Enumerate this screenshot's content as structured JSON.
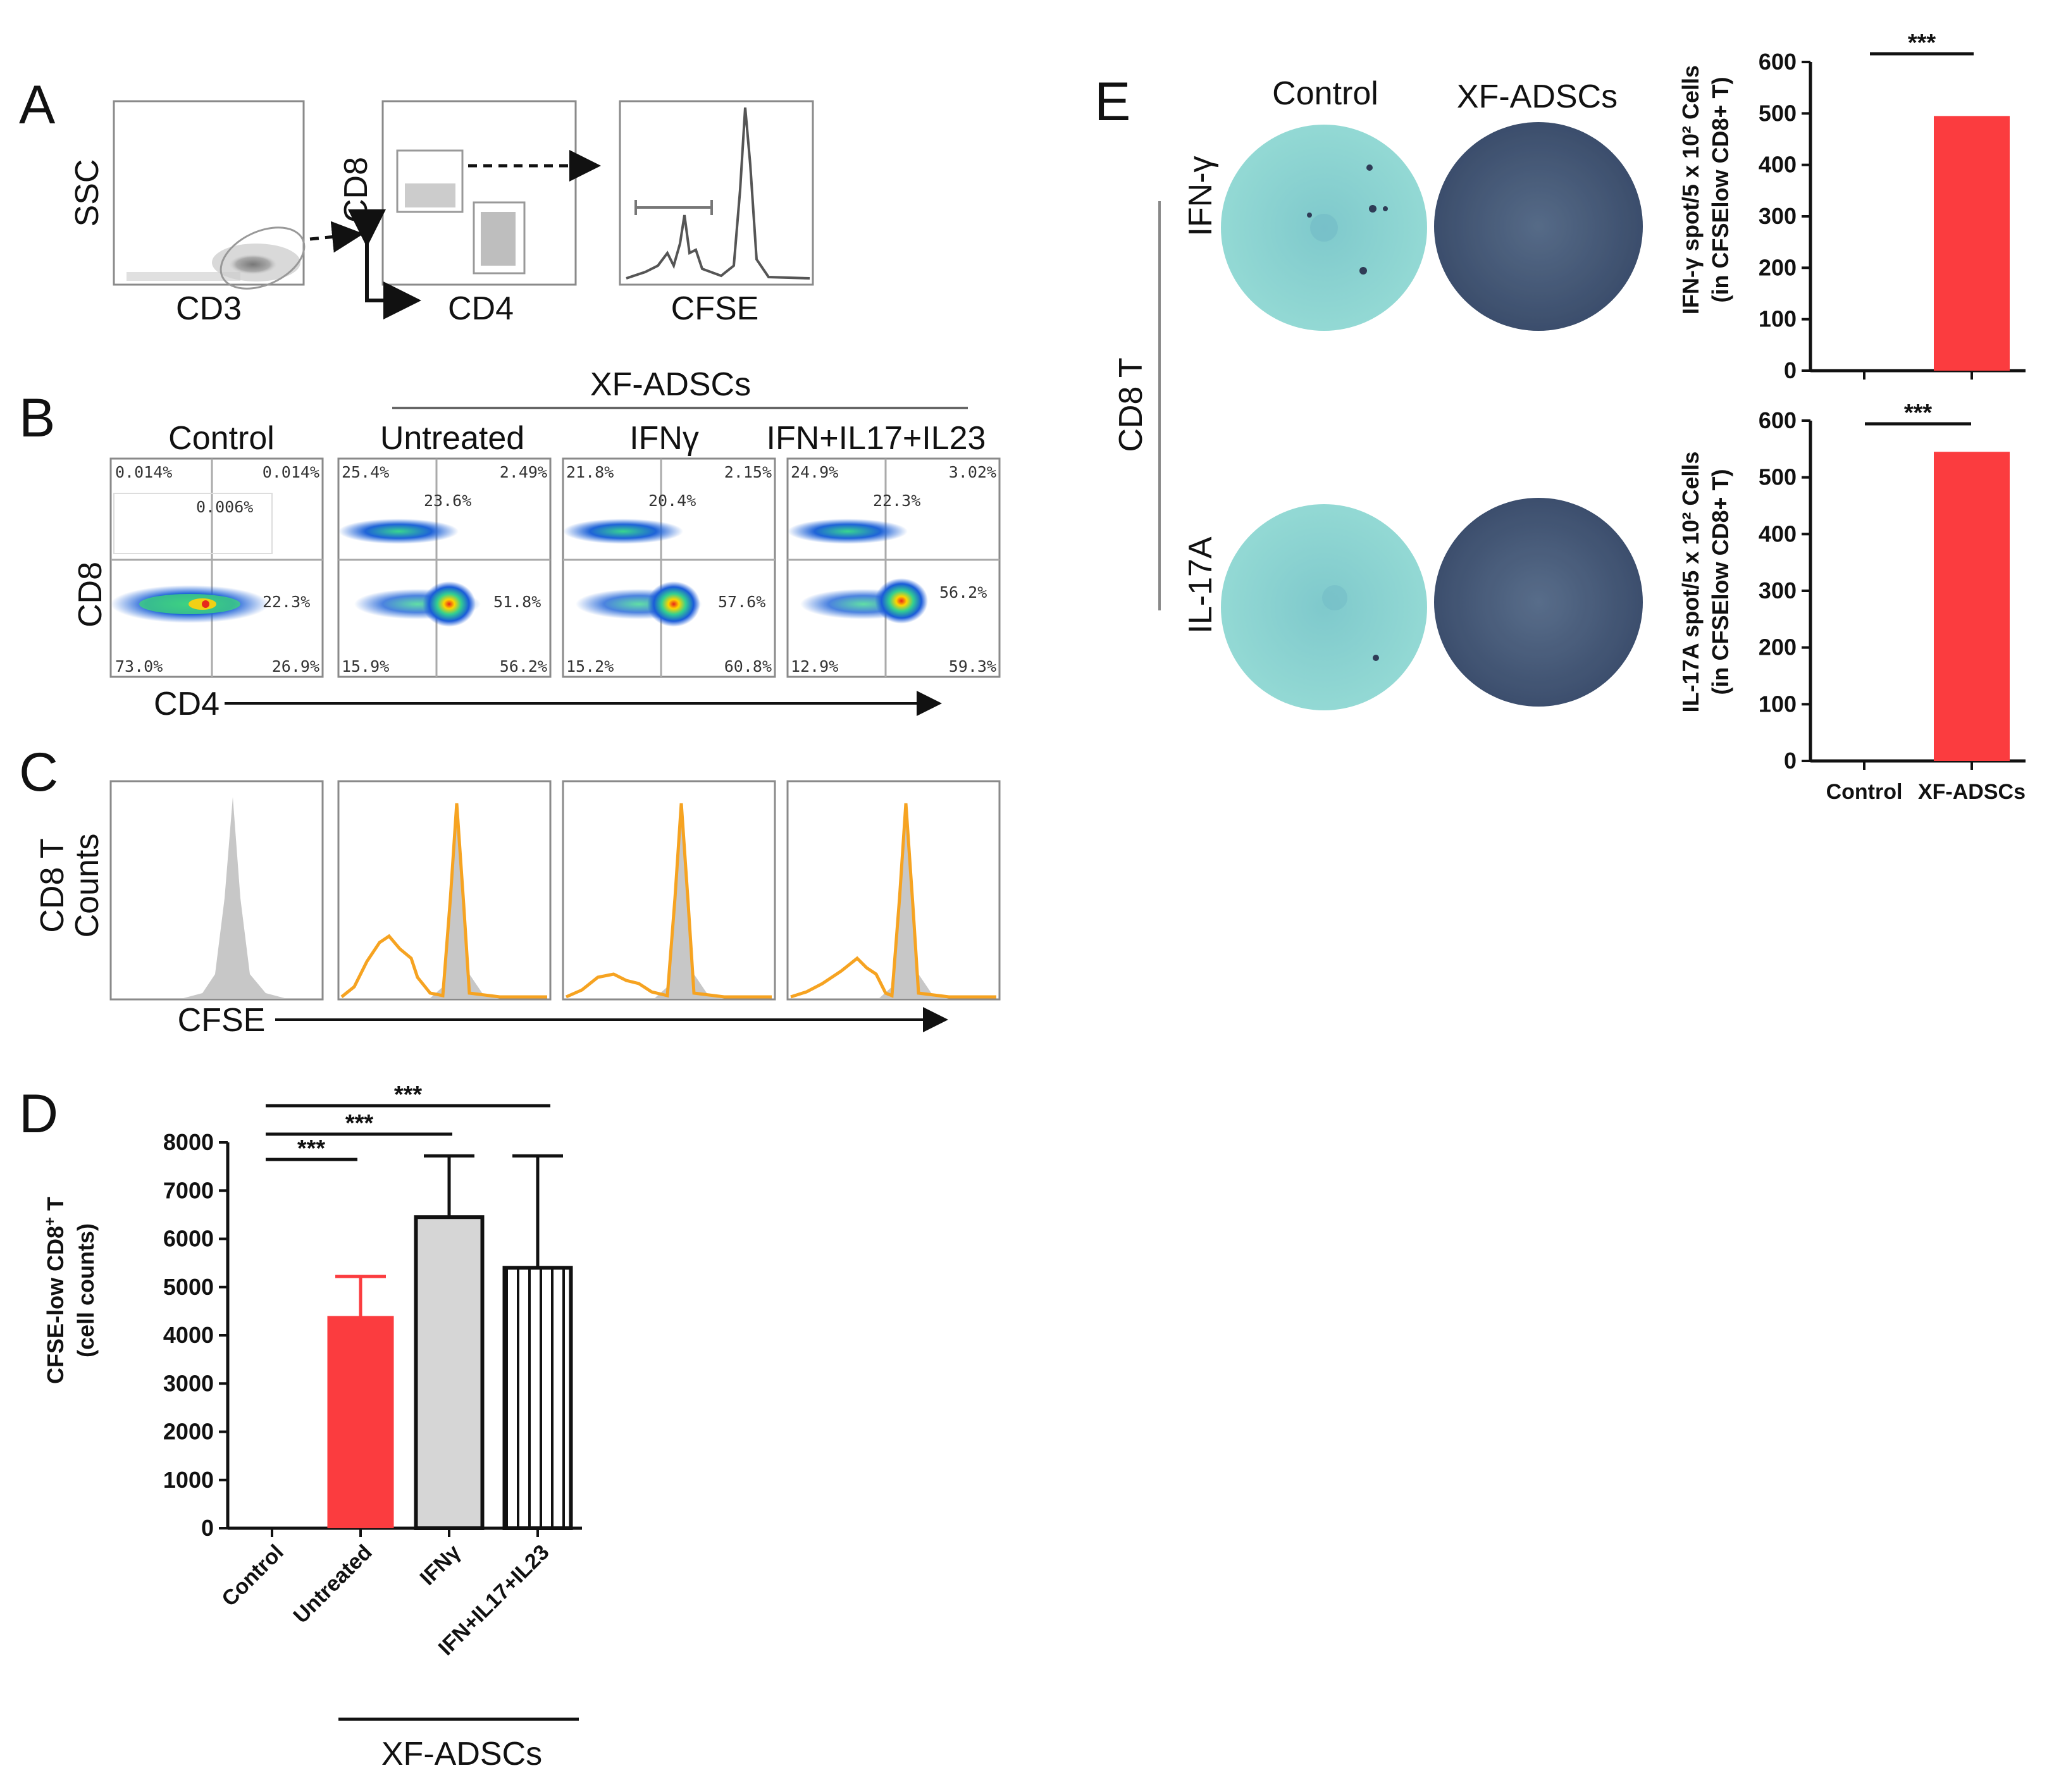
{
  "colors": {
    "red": "#fb3c3f",
    "grey_bar": "#d6d6d6",
    "orange": "#f6a321",
    "dish_bg": "#8fd3d0",
    "spot": "#2f3c56"
  },
  "panel_A": {
    "label": "A",
    "plot1": {
      "y_label": "SSC",
      "x_label": "CD3"
    },
    "plot2": {
      "y_label": "CD8",
      "x_label": "CD4"
    },
    "plot3": {
      "x_label": "CFSE"
    }
  },
  "panel_B": {
    "label": "B",
    "group_label": "XF-ADSCs",
    "y_axis": "CD8",
    "x_axis": "CD4",
    "plots": [
      {
        "title": "Control",
        "ul": "0.014%",
        "ur": "0.014%",
        "mid": "0.006%",
        "right": "22.3%",
        "ll": "73.0%",
        "lr": "26.9%"
      },
      {
        "title": "Untreated",
        "ul": "25.4%",
        "ur": "2.49%",
        "mid": "23.6%",
        "right": "51.8%",
        "ll": "15.9%",
        "lr": "56.2%"
      },
      {
        "title": "IFNγ",
        "ul": "21.8%",
        "ur": "2.15%",
        "mid": "20.4%",
        "right": "57.6%",
        "ll": "15.2%",
        "lr": "60.8%"
      },
      {
        "title": "IFN+IL17+IL23",
        "ul": "24.9%",
        "ur": "3.02%",
        "mid": "22.3%",
        "right": "56.2%",
        "ll": "12.9%",
        "lr": "59.3%"
      }
    ]
  },
  "panel_C": {
    "label": "C",
    "y_label_line1": "CD8 T",
    "y_label_line2": "Counts",
    "x_axis": "CFSE"
  },
  "panel_D": {
    "label": "D",
    "y_label_line1": "CFSE-low CD8",
    "y_label_sup": "+",
    "y_label_tail": " T",
    "y_label_line2": "(cell counts)",
    "group_label": "XF-ADSCs",
    "significance": [
      "***",
      "***",
      "***"
    ]
  },
  "panel_E": {
    "label": "E",
    "col_control": "Control",
    "col_xf": "XF-ADSCs",
    "row_ifn": "IFN-γ",
    "row_il17": "IL-17A",
    "side_label": "CD8 T",
    "chart1_y_line1": "IFN-γ spot/5 x 10² Cells",
    "chart1_y_line2": "(in CFSElow CD8+ T)",
    "chart2_y_line1": "IL-17A spot/5 x 10² Cells",
    "chart2_y_line2": "(in CFSElow CD8+ T)",
    "significance": "***"
  },
  "chart_data": [
    {
      "type": "bar",
      "id": "D",
      "title": "",
      "categories": [
        "Control",
        "Untreated",
        "IFNγ",
        "IFN+IL17+IL23"
      ],
      "values": [
        0,
        4400,
        6450,
        5400
      ],
      "errors": [
        0,
        820,
        1270,
        2320
      ],
      "fills": [
        "#fb3c3f",
        "#fb3c3f",
        "#d6d6d6",
        "hatch"
      ],
      "ylabel": "CFSE-low CD8+ T (cell counts)",
      "ylim": [
        0,
        8000
      ],
      "yticks": [
        0,
        1000,
        2000,
        3000,
        4000,
        5000,
        6000,
        7000,
        8000
      ]
    },
    {
      "type": "bar",
      "id": "E-IFN",
      "categories": [
        "Control",
        "XF-ADSCs"
      ],
      "values": [
        0,
        495
      ],
      "ylabel": "IFN-γ spot/5 x 10² Cells (in CFSElow CD8+ T)",
      "ylim": [
        0,
        600
      ],
      "yticks": [
        0,
        100,
        200,
        300,
        400,
        500,
        600
      ]
    },
    {
      "type": "bar",
      "id": "E-IL17A",
      "categories": [
        "Control",
        "XF-ADSCs"
      ],
      "values": [
        0,
        545
      ],
      "ylabel": "IL-17A spot/5 x 10² Cells (in CFSElow CD8+ T)",
      "ylim": [
        0,
        600
      ],
      "yticks": [
        0,
        100,
        200,
        300,
        400,
        500,
        600
      ]
    }
  ]
}
